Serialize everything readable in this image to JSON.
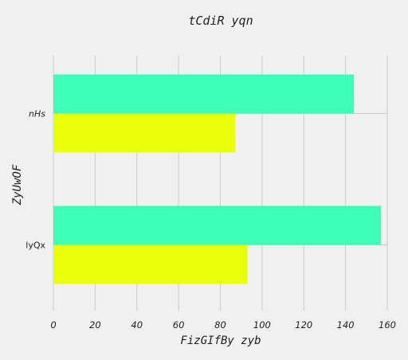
{
  "chart_data": {
    "type": "bar",
    "orientation": "horizontal",
    "title": "tCdiR yqn",
    "xlabel": "FizGIfBy zyb",
    "ylabel": "ZyUwOF",
    "categories": [
      "nHs",
      "lyQx"
    ],
    "category_italic": [
      true,
      false
    ],
    "series": [
      {
        "values": [
          144,
          157
        ],
        "color": "#3dffb9"
      },
      {
        "values": [
          87,
          93
        ],
        "color": "#eaff0a"
      }
    ],
    "xlim": [
      0,
      160
    ],
    "xticks": [
      0,
      20,
      40,
      60,
      80,
      100,
      120,
      140,
      160
    ],
    "grid": true,
    "background": "#f0f0f0",
    "grid_color": "#cbcbcb"
  }
}
